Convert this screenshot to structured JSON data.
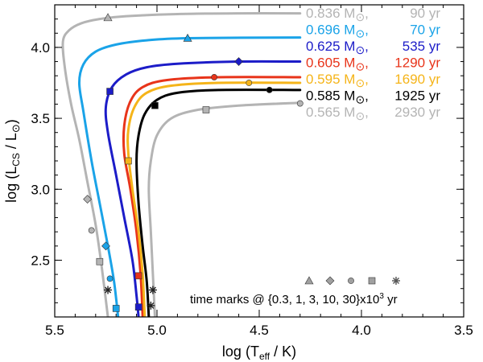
{
  "chart_data": {
    "type": "line",
    "xlabel_main": "log (T",
    "xlabel_sub": "eff",
    "xlabel_end": " / K)",
    "ylabel_main": "log (L",
    "ylabel_sub": "CS",
    "ylabel_mid": " / L",
    "ylabel_sun": "⊙",
    "ylabel_end": ")",
    "xlim": [
      5.5,
      3.5
    ],
    "ylim": [
      2.1,
      4.3
    ],
    "xticks": [
      5.5,
      5.0,
      4.5,
      4.0,
      3.5
    ],
    "xtick_labels": [
      "5.5",
      "5.0",
      "4.5",
      "4.0",
      "3.5"
    ],
    "yticks": [
      2.5,
      3.0,
      3.5,
      4.0
    ],
    "ytick_labels": [
      "2.5",
      "3.0",
      "3.5",
      "4.0"
    ],
    "series": [
      {
        "name": "0.836",
        "mass_label": "0.836 M",
        "age_label": "90 yr",
        "color": "#b4b4b4",
        "points": [
          [
            4.3,
            4.24
          ],
          [
            4.6,
            4.24
          ],
          [
            4.9,
            4.235
          ],
          [
            5.15,
            4.22
          ],
          [
            5.28,
            4.2
          ],
          [
            5.37,
            4.17
          ],
          [
            5.43,
            4.12
          ],
          [
            5.46,
            4.04
          ],
          [
            5.45,
            3.85
          ],
          [
            5.42,
            3.6
          ],
          [
            5.38,
            3.35
          ],
          [
            5.34,
            3.05
          ],
          [
            5.3,
            2.75
          ],
          [
            5.27,
            2.45
          ],
          [
            5.24,
            2.1
          ]
        ],
        "marks": [
          {
            "shape": "triangle",
            "x": 5.24,
            "y": 4.21
          },
          {
            "shape": "diamond",
            "x": 5.34,
            "y": 2.93
          },
          {
            "shape": "circle",
            "x": 5.32,
            "y": 2.71
          },
          {
            "shape": "square",
            "x": 5.28,
            "y": 2.49
          },
          {
            "shape": "star",
            "x": 5.24,
            "y": 2.29
          }
        ]
      },
      {
        "name": "0.696",
        "mass_label": "0.696 M",
        "age_label": "70 yr",
        "color": "#1aa3e8",
        "points": [
          [
            4.3,
            4.07
          ],
          [
            4.85,
            4.065
          ],
          [
            5.05,
            4.05
          ],
          [
            5.2,
            4.02
          ],
          [
            5.3,
            3.97
          ],
          [
            5.36,
            3.88
          ],
          [
            5.38,
            3.75
          ],
          [
            5.36,
            3.55
          ],
          [
            5.32,
            3.2
          ],
          [
            5.28,
            2.9
          ],
          [
            5.24,
            2.6
          ],
          [
            5.21,
            2.35
          ],
          [
            5.19,
            2.1
          ]
        ],
        "marks": [
          {
            "shape": "triangle",
            "x": 4.85,
            "y": 4.065
          },
          {
            "shape": "diamond",
            "x": 5.25,
            "y": 2.6
          },
          {
            "shape": "circle",
            "x": 5.23,
            "y": 2.37
          },
          {
            "shape": "square",
            "x": 5.2,
            "y": 2.16
          }
        ]
      },
      {
        "name": "0.625",
        "mass_label": "0.625 M",
        "age_label": "535 yr",
        "color": "#1c1cc8",
        "points": [
          [
            4.3,
            3.9
          ],
          [
            4.6,
            3.9
          ],
          [
            4.9,
            3.885
          ],
          [
            5.05,
            3.86
          ],
          [
            5.15,
            3.81
          ],
          [
            5.22,
            3.72
          ],
          [
            5.25,
            3.58
          ],
          [
            5.24,
            3.4
          ],
          [
            5.2,
            3.1
          ],
          [
            5.16,
            2.8
          ],
          [
            5.12,
            2.5
          ],
          [
            5.1,
            2.25
          ],
          [
            5.09,
            2.1
          ]
        ],
        "marks": [
          {
            "shape": "diamond",
            "x": 4.6,
            "y": 3.9
          },
          {
            "shape": "square",
            "x": 5.23,
            "y": 3.69
          },
          {
            "shape": "square",
            "x": 5.09,
            "y": 2.17
          }
        ]
      },
      {
        "name": "0.605",
        "mass_label": "0.605 M",
        "age_label": "1290 yr",
        "color": "#e8341a",
        "points": [
          [
            4.3,
            3.79
          ],
          [
            4.7,
            3.79
          ],
          [
            4.95,
            3.77
          ],
          [
            5.07,
            3.72
          ],
          [
            5.13,
            3.62
          ],
          [
            5.16,
            3.45
          ],
          [
            5.16,
            3.25
          ],
          [
            5.13,
            3.0
          ],
          [
            5.1,
            2.7
          ],
          [
            5.08,
            2.4
          ],
          [
            5.07,
            2.1
          ]
        ],
        "marks": [
          {
            "shape": "circle",
            "x": 4.72,
            "y": 3.79
          },
          {
            "shape": "square",
            "x": 5.09,
            "y": 2.39
          }
        ]
      },
      {
        "name": "0.595",
        "mass_label": "0.595 M",
        "age_label": "1690 yr",
        "color": "#f5b419",
        "points": [
          [
            4.3,
            3.75
          ],
          [
            4.7,
            3.75
          ],
          [
            4.93,
            3.73
          ],
          [
            5.05,
            3.68
          ],
          [
            5.11,
            3.58
          ],
          [
            5.14,
            3.42
          ],
          [
            5.14,
            3.25
          ],
          [
            5.12,
            3.0
          ],
          [
            5.09,
            2.7
          ],
          [
            5.07,
            2.4
          ],
          [
            5.06,
            2.1
          ]
        ],
        "marks": [
          {
            "shape": "circle",
            "x": 4.55,
            "y": 3.75
          },
          {
            "shape": "square",
            "x": 5.14,
            "y": 3.2
          }
        ]
      },
      {
        "name": "0.585",
        "mass_label": "0.585 M",
        "age_label": "1925 yr",
        "color": "#000000",
        "points": [
          [
            4.3,
            3.7
          ],
          [
            4.7,
            3.7
          ],
          [
            4.9,
            3.68
          ],
          [
            5.0,
            3.63
          ],
          [
            5.06,
            3.53
          ],
          [
            5.09,
            3.38
          ],
          [
            5.1,
            3.2
          ],
          [
            5.09,
            2.9
          ],
          [
            5.07,
            2.6
          ],
          [
            5.05,
            2.35
          ],
          [
            5.04,
            2.1
          ]
        ],
        "marks": [
          {
            "shape": "circle",
            "x": 4.45,
            "y": 3.7
          },
          {
            "shape": "square",
            "x": 5.01,
            "y": 3.59
          },
          {
            "shape": "star",
            "x": 5.03,
            "y": 2.18
          }
        ]
      },
      {
        "name": "0.565",
        "mass_label": "0.565 M",
        "age_label": "2930 yr",
        "color": "#b4b4b4",
        "points": [
          [
            4.3,
            3.61
          ],
          [
            4.6,
            3.59
          ],
          [
            4.8,
            3.56
          ],
          [
            4.93,
            3.5
          ],
          [
            5.0,
            3.38
          ],
          [
            5.03,
            3.2
          ],
          [
            5.04,
            3.0
          ],
          [
            5.03,
            2.7
          ],
          [
            5.02,
            2.4
          ],
          [
            5.01,
            2.1
          ]
        ],
        "marks": [
          {
            "shape": "square",
            "x": 4.76,
            "y": 3.56
          },
          {
            "shape": "circle",
            "x": 4.3,
            "y": 3.605
          },
          {
            "shape": "star",
            "x": 5.02,
            "y": 2.29
          }
        ]
      }
    ],
    "legend_sun": "⊙",
    "legend_comma": ",",
    "marks_legend": {
      "shapes": [
        "triangle",
        "diamond",
        "circle",
        "square",
        "star"
      ],
      "text_prefix": "time marks @ {0.3, 1, 3, 10, 30}x10",
      "text_exp": "3",
      "text_suffix": " yr",
      "color": "#a0a0a0"
    }
  }
}
